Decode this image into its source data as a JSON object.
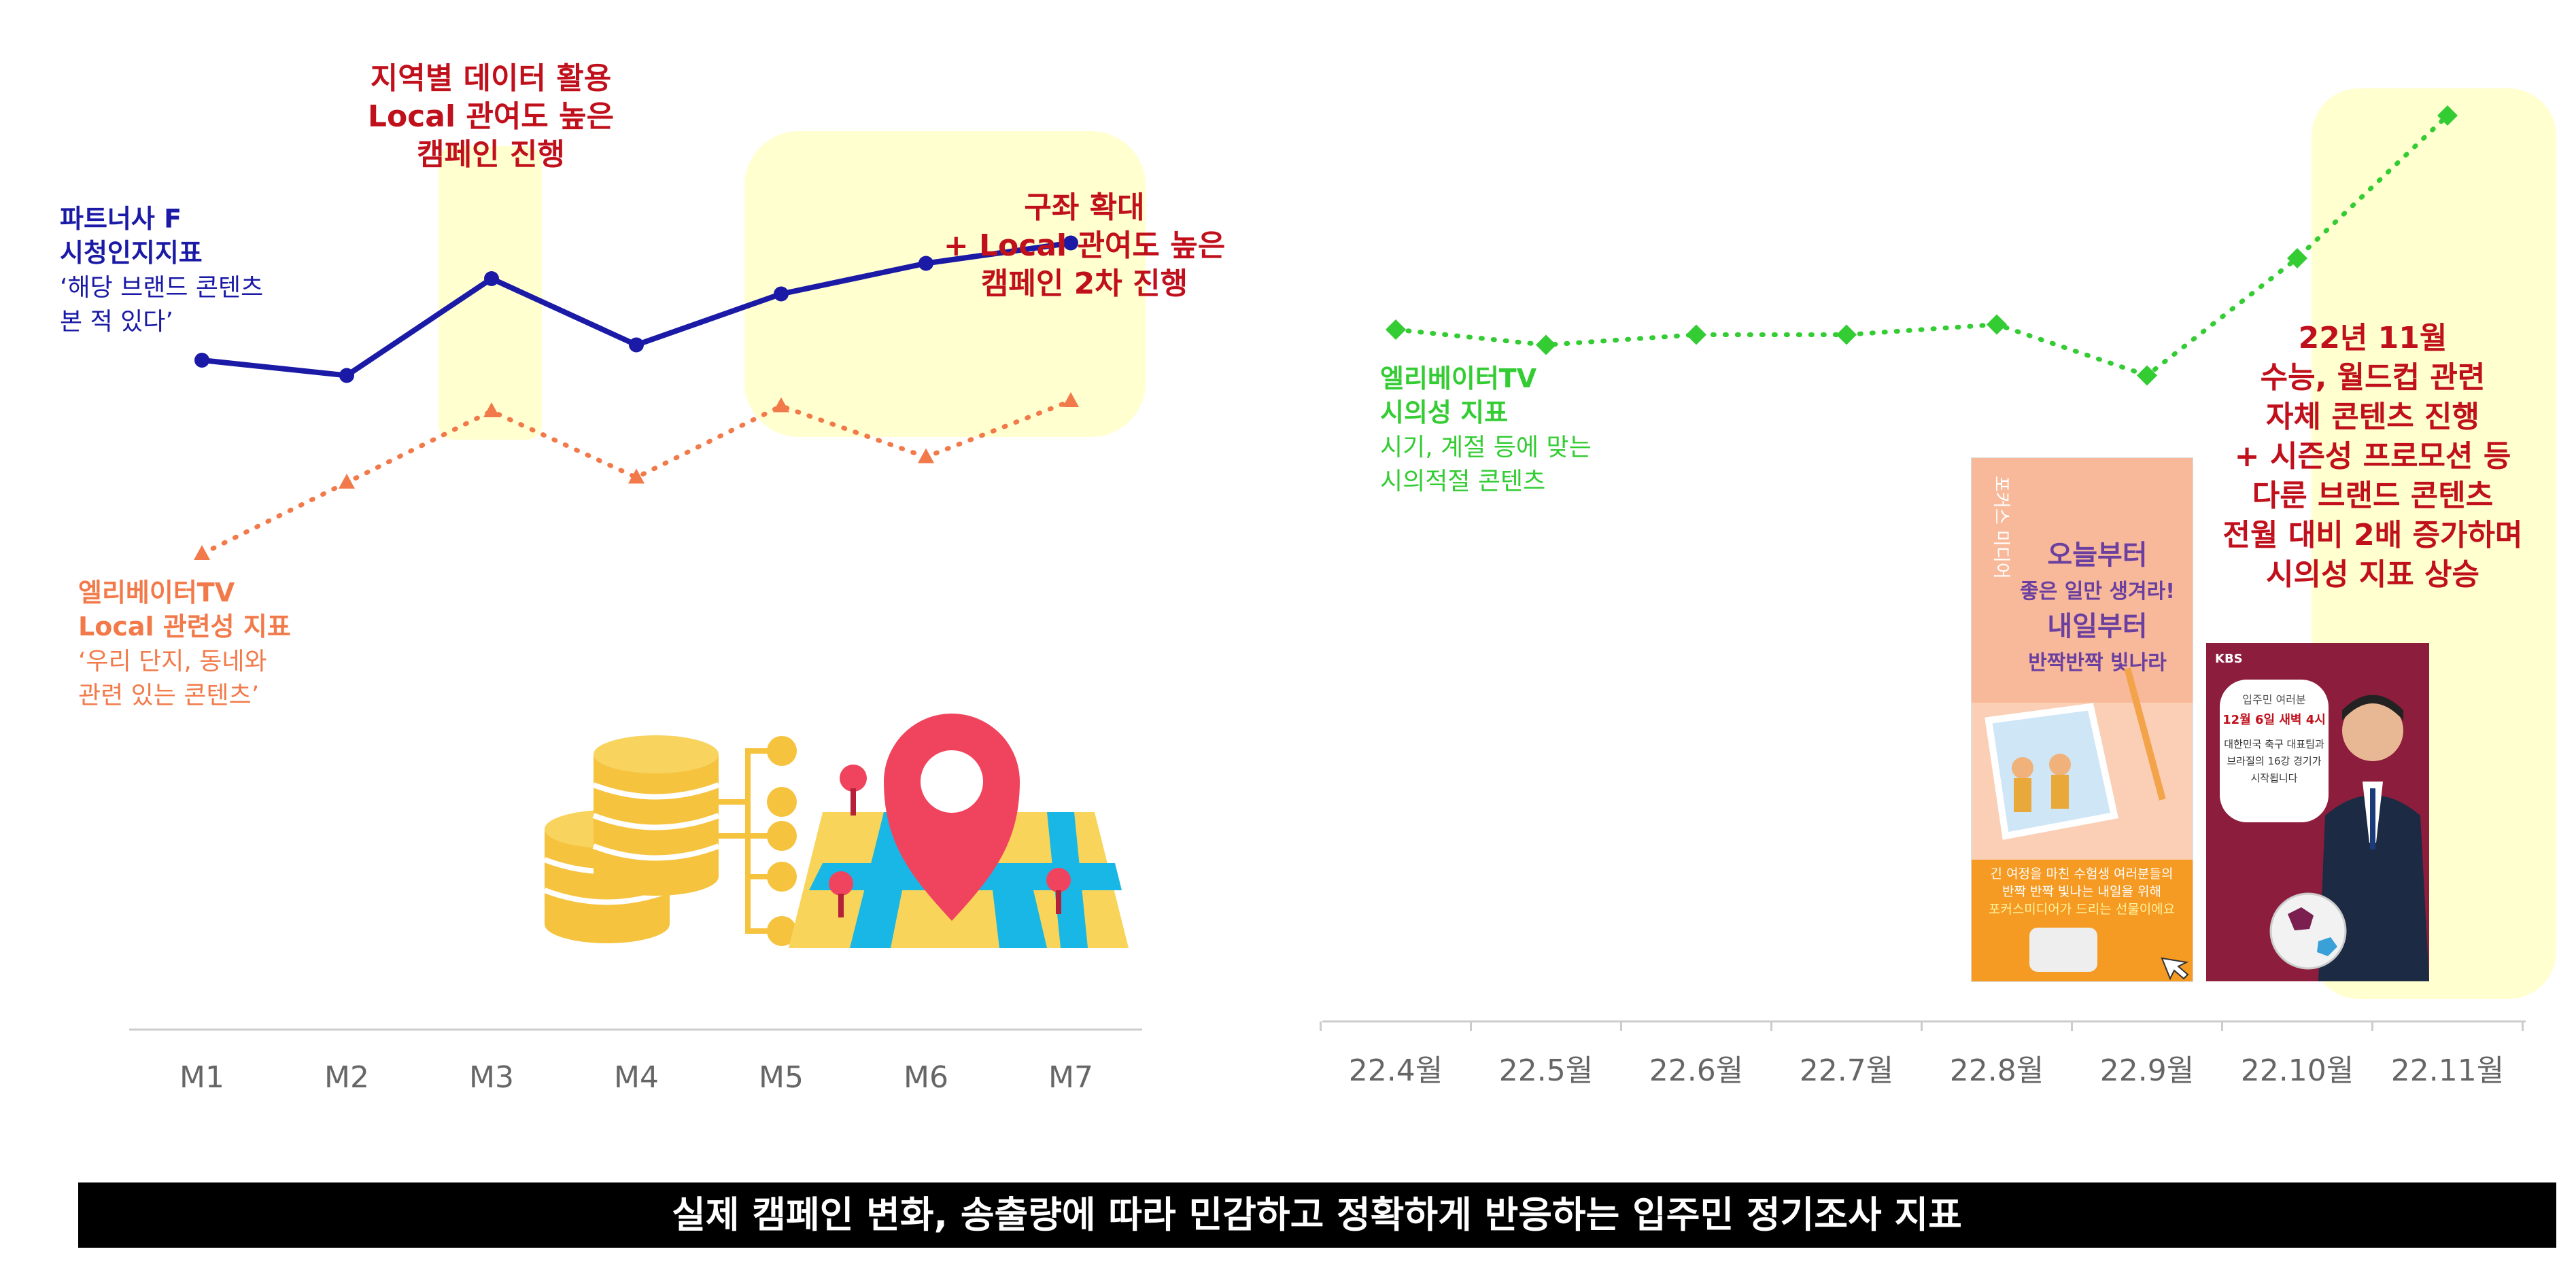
{
  "chart_data": [
    {
      "type": "line",
      "categories": [
        "M1",
        "M2",
        "M3",
        "M4",
        "M5",
        "M6",
        "M7"
      ],
      "ylim": [
        0,
        100
      ],
      "grid": false,
      "legend": "inline-left",
      "series": [
        {
          "name_lines": [
            "파트너사 F",
            "시청인지지표"
          ],
          "desc_lines": [
            "‘해당 브랜드 콘텐츠",
            "본 적 있다’"
          ],
          "values": [
            44,
            41,
            60,
            47,
            57,
            63,
            67
          ],
          "color": "#1a1aa6",
          "style": "solid-circle"
        },
        {
          "name_lines": [
            "엘리베이터TV",
            "Local 관련성 지표"
          ],
          "desc_lines": [
            "‘우리 단지, 동네와",
            "관련 있는 콘텐츠’"
          ],
          "values": [
            6,
            20,
            34,
            21,
            35,
            25,
            36
          ],
          "color": "#f27a4a",
          "style": "dotted-triangle"
        }
      ],
      "annotations": [
        {
          "lines": [
            "지역별 데이터 활용",
            "Local 관여도 높은",
            "캠페인 진행"
          ],
          "color": "#c0101c"
        },
        {
          "lines": [
            "구좌 확대",
            "+ Local 관여도 높은",
            "캠페인 2차 진행"
          ],
          "color": "#c0101c"
        }
      ],
      "highlight_color": "#ffffd0"
    },
    {
      "type": "line",
      "categories": [
        "22.4월",
        "22.5월",
        "22.6월",
        "22.7월",
        "22.8월",
        "22.9월",
        "22.10월",
        "22.11월"
      ],
      "ylim": [
        0,
        100
      ],
      "grid": false,
      "legend": "inline-left",
      "series": [
        {
          "name_lines": [
            "엘리베이터TV",
            "시의성 지표"
          ],
          "desc_lines": [
            "시기, 계절 등에 맞는",
            "시의적절 콘텐츠"
          ],
          "values": [
            50,
            47,
            49,
            49,
            51,
            41,
            64,
            92
          ],
          "color": "#33cc33",
          "style": "dotted-diamond"
        }
      ],
      "annotations": [
        {
          "lines": [
            "22년 11월",
            "수능, 월드컵 관련",
            "자체 콘텐츠 진행",
            "+ 시즌성 프로모션 등",
            "다룬  브랜드 콘텐츠",
            "전월 대비 2배 증가하며",
            "시의성 지표 상승"
          ],
          "color": "#c0101c"
        }
      ],
      "highlight_color": "#ffffd0"
    }
  ],
  "poster_left": {
    "brand": "포커스 미디어",
    "headline": [
      "오늘부터",
      "좋은 일만 생겨라!",
      "내일부터",
      "반짝반짝 빛나라"
    ],
    "bottom_text": [
      "긴 여정을 마친 수험생 여러분들의",
      "반짝 반짝 빛나는 내일을 위해",
      "포커스미디어가 드리는 선물이에요"
    ]
  },
  "poster_right": {
    "brand": "KBS",
    "bubble": [
      "입주민 여러분",
      "12월 6일 새벽 4시",
      "대한민국 축구 대표팀과",
      "브라질의 16강 경기가",
      "시작됩니다"
    ]
  },
  "footer": {
    "text": "실제 캠페인 변화, 송출량에 따라 민감하고 정확하게 반응하는 입주민 정기조사 지표"
  }
}
